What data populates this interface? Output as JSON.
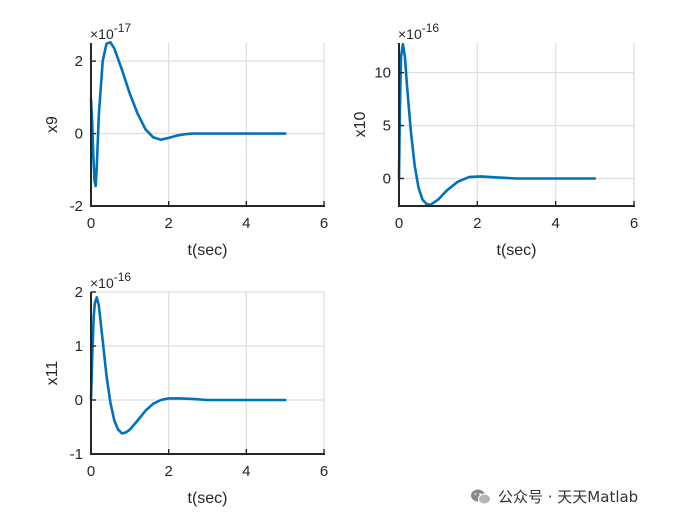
{
  "colors": {
    "line": "#0072BD",
    "axis": "#262626",
    "grid": "#DFDFDF"
  },
  "watermark": {
    "text": "公众号 · 天天Matlab",
    "icon": "wechat-icon"
  },
  "chart_data": [
    {
      "type": "line",
      "ylabel": "x9",
      "xlabel": "t(sec)",
      "exponent": "-17",
      "xlim": [
        0,
        6
      ],
      "ylim": [
        -2,
        2.5
      ],
      "xticks": [
        0,
        2,
        4,
        6
      ],
      "yticks": [
        -2,
        0,
        2
      ],
      "grid": true,
      "series": [
        {
          "x": [
            0,
            0.03,
            0.06,
            0.09,
            0.12,
            0.15,
            0.2,
            0.3,
            0.4,
            0.5,
            0.6,
            0.8,
            1.0,
            1.2,
            1.4,
            1.6,
            1.8,
            2.0,
            2.2,
            2.4,
            2.6,
            3.0,
            3.5,
            4.0,
            4.5,
            5.0
          ],
          "y": [
            0.95,
            0.3,
            -0.6,
            -1.3,
            -1.45,
            -0.9,
            0.5,
            2.0,
            2.48,
            2.52,
            2.35,
            1.75,
            1.1,
            0.55,
            0.12,
            -0.1,
            -0.17,
            -0.12,
            -0.06,
            -0.02,
            0,
            0,
            0,
            0,
            0,
            0
          ]
        }
      ]
    },
    {
      "type": "line",
      "ylabel": "x10",
      "xlabel": "t(sec)",
      "exponent": "-16",
      "xlim": [
        0,
        6
      ],
      "ylim": [
        -2.6,
        12.8
      ],
      "xticks": [
        0,
        2,
        4,
        6
      ],
      "yticks": [
        0,
        5,
        10
      ],
      "grid": true,
      "series": [
        {
          "x": [
            0,
            0.02,
            0.05,
            0.1,
            0.15,
            0.2,
            0.3,
            0.4,
            0.5,
            0.6,
            0.7,
            0.8,
            1.0,
            1.2,
            1.5,
            1.8,
            2.1,
            2.5,
            3.0,
            3.5,
            4.0,
            4.5,
            5.0
          ],
          "y": [
            0,
            6,
            11.5,
            12.7,
            11.5,
            9,
            4.5,
            1.2,
            -0.9,
            -2.0,
            -2.4,
            -2.5,
            -2.0,
            -1.2,
            -0.3,
            0.15,
            0.2,
            0.1,
            0,
            0,
            0,
            0,
            0
          ]
        }
      ]
    },
    {
      "type": "line",
      "ylabel": "x11",
      "xlabel": "t(sec)",
      "exponent": "-16",
      "xlim": [
        0,
        6
      ],
      "ylim": [
        -1,
        2
      ],
      "xticks": [
        0,
        2,
        4,
        6
      ],
      "yticks": [
        -1,
        0,
        1,
        2
      ],
      "grid": true,
      "series": [
        {
          "x": [
            0,
            0.03,
            0.07,
            0.1,
            0.15,
            0.2,
            0.3,
            0.4,
            0.5,
            0.6,
            0.7,
            0.8,
            0.9,
            1.0,
            1.2,
            1.4,
            1.6,
            1.8,
            2.0,
            2.3,
            2.6,
            3.0,
            3.5,
            4.0,
            4.5,
            5.0
          ],
          "y": [
            0,
            0.8,
            1.55,
            1.8,
            1.9,
            1.75,
            1.1,
            0.45,
            -0.05,
            -0.38,
            -0.55,
            -0.62,
            -0.6,
            -0.55,
            -0.38,
            -0.2,
            -0.07,
            0,
            0.03,
            0.03,
            0.02,
            0,
            0,
            0,
            0,
            0
          ]
        }
      ]
    }
  ]
}
